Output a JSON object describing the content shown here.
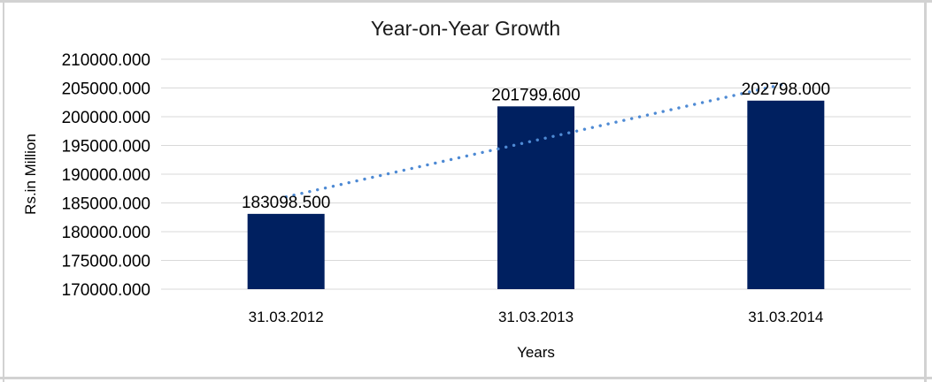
{
  "chart_data": {
    "type": "bar",
    "title": "Year-on-Year Growth",
    "xlabel": "Years",
    "ylabel": "Rs.in Million",
    "categories": [
      "31.03.2012",
      "31.03.2013",
      "31.03.2014"
    ],
    "values": [
      183098.5,
      201799.6,
      202798.0
    ],
    "data_labels": [
      "183098.500",
      "201799.600",
      "202798.000"
    ],
    "ylim": [
      170000,
      210000
    ],
    "ytick_step": 5000,
    "ytick_labels": [
      "210000.000",
      "205000.000",
      "200000.000",
      "195000.000",
      "190000.000",
      "185000.000",
      "180000.000",
      "175000.000",
      "170000.000"
    ],
    "grid": true,
    "legend_position": "none",
    "trendline": {
      "type": "linear",
      "style": "dotted"
    },
    "colors": {
      "bar": "#002060",
      "trendline": "#4E8AD4",
      "gridline": "#D9D9D9",
      "text": "#000000",
      "title_text": "#1A1A1A",
      "frame_border": "#D2D2D2",
      "background": "#FFFFFF"
    }
  }
}
